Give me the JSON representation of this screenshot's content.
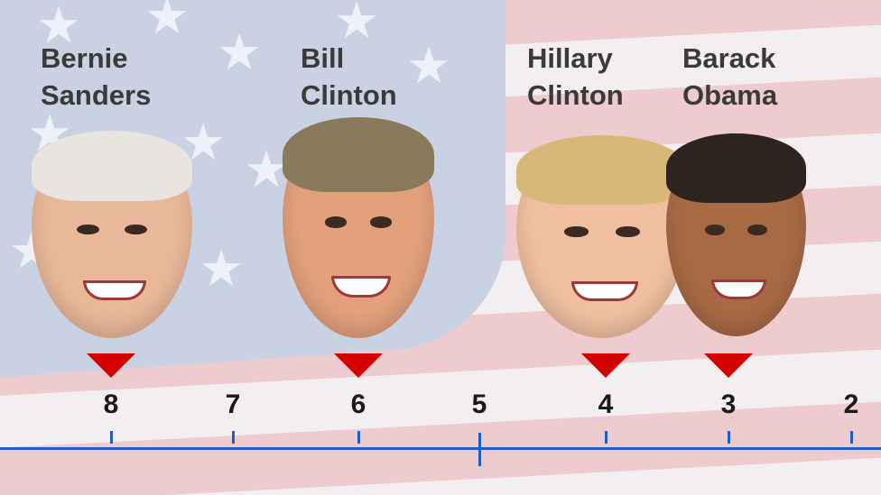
{
  "people": [
    {
      "first": "Bernie",
      "last": "Sanders",
      "score": 8,
      "skin": "#e9b89a",
      "hair": "#e8e4e0"
    },
    {
      "first": "Bill",
      "last": "Clinton",
      "score": 6,
      "skin": "#e2a07c",
      "hair": "#8a7a5c"
    },
    {
      "first": "Hillary",
      "last": "Clinton",
      "score": 4,
      "skin": "#efbfa0",
      "hair": "#d8b878"
    },
    {
      "first": "Barack",
      "last": "Obama",
      "score": 3,
      "skin": "#a86a45",
      "hair": "#2e241f"
    }
  ],
  "scale": {
    "ticks": [
      "8",
      "7",
      "6",
      "5",
      "4",
      "3",
      "2"
    ],
    "midpoint": "5"
  },
  "colors": {
    "marker": "#d40000",
    "axis": "#1f5ec8"
  }
}
